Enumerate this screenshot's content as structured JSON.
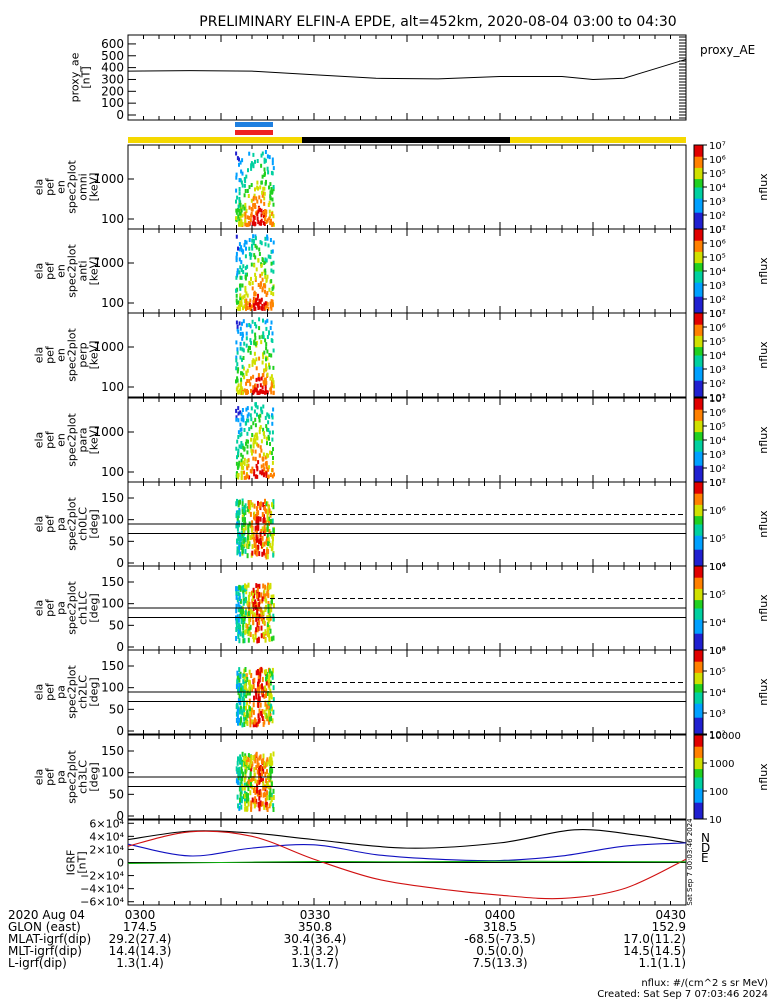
{
  "title": "PRELIMINARY ELFIN-A EPDE, alt=452km, 2020-08-04 03:00 to 04:30",
  "colors": {
    "spin_blue": "#1e7fe0",
    "spin_red": "#ee2222",
    "bar_yellow": "#f5d800",
    "bar_black": "#000000",
    "bx": "#1010c0",
    "by": "#d01010",
    "bz": "#10b010",
    "btot": "#000000"
  },
  "chart_data": [
    {
      "id": "ae",
      "type": "line",
      "ylabel": "proxy_ae\n[nT]",
      "ylim": [
        0,
        650
      ],
      "yticks": [
        "0",
        "100",
        "200",
        "300",
        "400",
        "500",
        "600"
      ],
      "legend": "proxy_AE",
      "x_minutes": [
        0,
        10,
        20,
        30,
        40,
        50,
        60,
        70,
        75,
        80,
        85,
        90
      ],
      "values": [
        370,
        375,
        370,
        340,
        310,
        305,
        325,
        325,
        300,
        310,
        390,
        470
      ]
    },
    {
      "id": "spec-omni",
      "type": "heatmap",
      "ylabel": "ela\npef\nen\nspec2plot\nomni\n[keV]",
      "yticks": [
        "100",
        "1000"
      ],
      "colorbar": {
        "label": "nflux",
        "ticks": [
          "10¹",
          "10²",
          "10³",
          "10⁴",
          "10⁵",
          "10⁶",
          "10⁷"
        ]
      }
    },
    {
      "id": "spec-anti",
      "type": "heatmap",
      "ylabel": "ela\npef\nen\nspec2plot\nanti\n[keV]",
      "yticks": [
        "100",
        "1000"
      ],
      "colorbar": {
        "label": "nflux",
        "ticks": [
          "10¹",
          "10²",
          "10³",
          "10⁴",
          "10⁵",
          "10⁶",
          "10⁷"
        ]
      }
    },
    {
      "id": "spec-perp",
      "type": "heatmap",
      "ylabel": "ela\npef\nen\nspec2plot\nperp\n[keV]",
      "yticks": [
        "100",
        "1000"
      ],
      "colorbar": {
        "label": "nflux",
        "ticks": [
          "10¹",
          "10²",
          "10³",
          "10⁴",
          "10⁵",
          "10⁶",
          "10⁷"
        ]
      }
    },
    {
      "id": "spec-para",
      "type": "heatmap",
      "ylabel": "ela\npef\nen\nspec2plot\npara\n[keV]",
      "yticks": [
        "100",
        "1000"
      ],
      "colorbar": {
        "label": "nflux",
        "ticks": [
          "10¹",
          "10²",
          "10³",
          "10⁴",
          "10⁵",
          "10⁶",
          "10⁷"
        ]
      }
    },
    {
      "id": "pa-ch0",
      "type": "heatmap",
      "ylabel": "ela\npef\npa\nspec2plot\nch0LC\n[deg]",
      "yticks": [
        "0",
        "50",
        "100",
        "150"
      ],
      "colorbar": {
        "label": "nflux",
        "ticks": [
          "10⁴",
          "10⁵",
          "10⁶",
          "10⁷"
        ]
      }
    },
    {
      "id": "pa-ch1",
      "type": "heatmap",
      "ylabel": "ela\npef\npa\nspec2plot\nch1LC\n[deg]",
      "yticks": [
        "0",
        "50",
        "100",
        "150"
      ],
      "colorbar": {
        "label": "nflux",
        "ticks": [
          "10³",
          "10⁴",
          "10⁵",
          "10⁶"
        ]
      }
    },
    {
      "id": "pa-ch2",
      "type": "heatmap",
      "ylabel": "ela\npef\npa\nspec2plot\nch2LC\n[deg]",
      "yticks": [
        "0",
        "50",
        "100",
        "150"
      ],
      "colorbar": {
        "label": "nflux",
        "ticks": [
          "10²",
          "10³",
          "10⁴",
          "10⁵",
          "10⁶"
        ]
      }
    },
    {
      "id": "pa-ch3",
      "type": "heatmap",
      "ylabel": "ela\npef\npa\nspec2plot\nch3LC\n[deg]",
      "yticks": [
        "0",
        "50",
        "100",
        "150"
      ],
      "colorbar": {
        "label": "nflux",
        "ticks": [
          "10",
          "100",
          "1000",
          "10000"
        ]
      }
    },
    {
      "id": "igrf",
      "type": "line",
      "ylabel": "IGRF\n[nT]",
      "ylim": [
        -65000,
        65000
      ],
      "yticks": [
        "−6×10⁴",
        "−4×10⁴",
        "−2×10⁴",
        "0",
        "2×10⁴",
        "4×10⁴",
        "6×10⁴"
      ],
      "legend": [
        "N",
        "D",
        "E"
      ],
      "series": [
        {
          "name": "Btot",
          "color": "#000000",
          "x_minutes": [
            0,
            10,
            20,
            30,
            45,
            60,
            72,
            82,
            90
          ],
          "values": [
            35000,
            48000,
            45000,
            35000,
            22000,
            30000,
            50000,
            42000,
            30000
          ]
        },
        {
          "name": "N",
          "color": "#1010c0",
          "x_minutes": [
            0,
            10,
            20,
            30,
            40,
            50,
            60,
            70,
            80,
            90
          ],
          "values": [
            28000,
            10000,
            22000,
            27000,
            12000,
            5000,
            3000,
            10000,
            25000,
            30000
          ]
        },
        {
          "name": "D",
          "color": "#d01010",
          "x_minutes": [
            0,
            10,
            20,
            30,
            40,
            50,
            60,
            70,
            80,
            90
          ],
          "values": [
            25000,
            47000,
            40000,
            5000,
            -25000,
            -40000,
            -50000,
            -55000,
            -40000,
            5000
          ]
        },
        {
          "name": "E",
          "color": "#10b010",
          "x_minutes": [
            0,
            15,
            30,
            45,
            60,
            75,
            90
          ],
          "values": [
            -1500,
            0,
            1500,
            1000,
            2000,
            1500,
            1000
          ]
        }
      ]
    }
  ],
  "xaxis": {
    "ticks": [
      "0300",
      "0330",
      "0400",
      "0430"
    ],
    "rows": [
      {
        "label": "2020 Aug 04",
        "values": [
          "0300",
          "0330",
          "0400",
          "0430"
        ]
      },
      {
        "label": "GLON (east)",
        "values": [
          "174.5",
          "350.8",
          "318.5",
          "152.9"
        ]
      },
      {
        "label": "MLAT-igrf(dip)",
        "values": [
          "29.2(27.4)",
          "30.4(36.4)",
          "-68.5(-73.5)",
          "17.0(11.2)"
        ]
      },
      {
        "label": "MLT-igrf(dip)",
        "values": [
          "14.4(14.3)",
          "3.1(3.2)",
          "0.5(0.0)",
          "14.5(14.5)"
        ]
      },
      {
        "label": "L-igrf(dip)",
        "values": [
          "1.3(1.4)",
          "1.3(1.7)",
          "7.5(13.3)",
          "1.1(1.1)"
        ]
      }
    ]
  },
  "footer": {
    "units": "nflux: #/(cm^2 s sr MeV)",
    "created": "Created: Sat Sep  7 07:03:46 2024",
    "side_stamp": "Sat Sep  7 00:03:46 2024"
  }
}
